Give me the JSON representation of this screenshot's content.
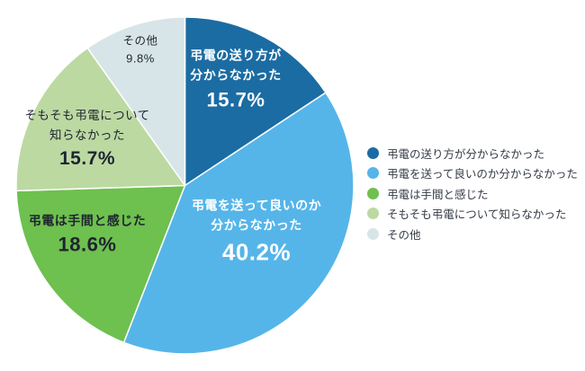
{
  "chart_data": {
    "type": "pie",
    "title": "",
    "unit": "%",
    "direction": "clockwise",
    "start_angle_deg": 0,
    "legend_position": "right",
    "categories": [
      "弔電の送り方が分からなかった",
      "弔電を送って良いのか分からなかった",
      "弔電は手間と感じた",
      "そもそも弔電について知らなかった",
      "その他"
    ],
    "values": [
      15.7,
      40.2,
      18.6,
      15.7,
      9.8
    ],
    "colors": [
      "#1b6ca3",
      "#55b5e9",
      "#6ec04f",
      "#bcd9a2",
      "#d8e5e8"
    ],
    "slice_labels": [
      {
        "lines": [
          "弔電の送り方が",
          "分からなかった"
        ],
        "pct": "15.7%",
        "text_color": "#ffffff"
      },
      {
        "lines": [
          "弔電を送って良いのか",
          "分からなかった"
        ],
        "pct": "40.2%",
        "text_color": "#ffffff"
      },
      {
        "lines": [
          "弔電は手間と感じた"
        ],
        "pct": "18.6%",
        "text_color": "#1f2430"
      },
      {
        "lines": [
          "そもそも弔電について",
          "知らなかった"
        ],
        "pct": "15.7%",
        "text_color": "#1f2430"
      },
      {
        "lines": [
          "その他"
        ],
        "pct": "9.8%",
        "text_color": "#1f2430"
      }
    ],
    "legend": {
      "items": [
        {
          "label": "弔電の送り方が分からなかった",
          "color": "#1b6ca3"
        },
        {
          "label": "弔電を送って良いのか分からなかった",
          "color": "#55b5e9"
        },
        {
          "label": "弔電は手間と感じた",
          "color": "#6ec04f"
        },
        {
          "label": "そもそも弔電について知らなかった",
          "color": "#bcd9a2"
        },
        {
          "label": "その他",
          "color": "#d8e5e8"
        }
      ]
    }
  }
}
